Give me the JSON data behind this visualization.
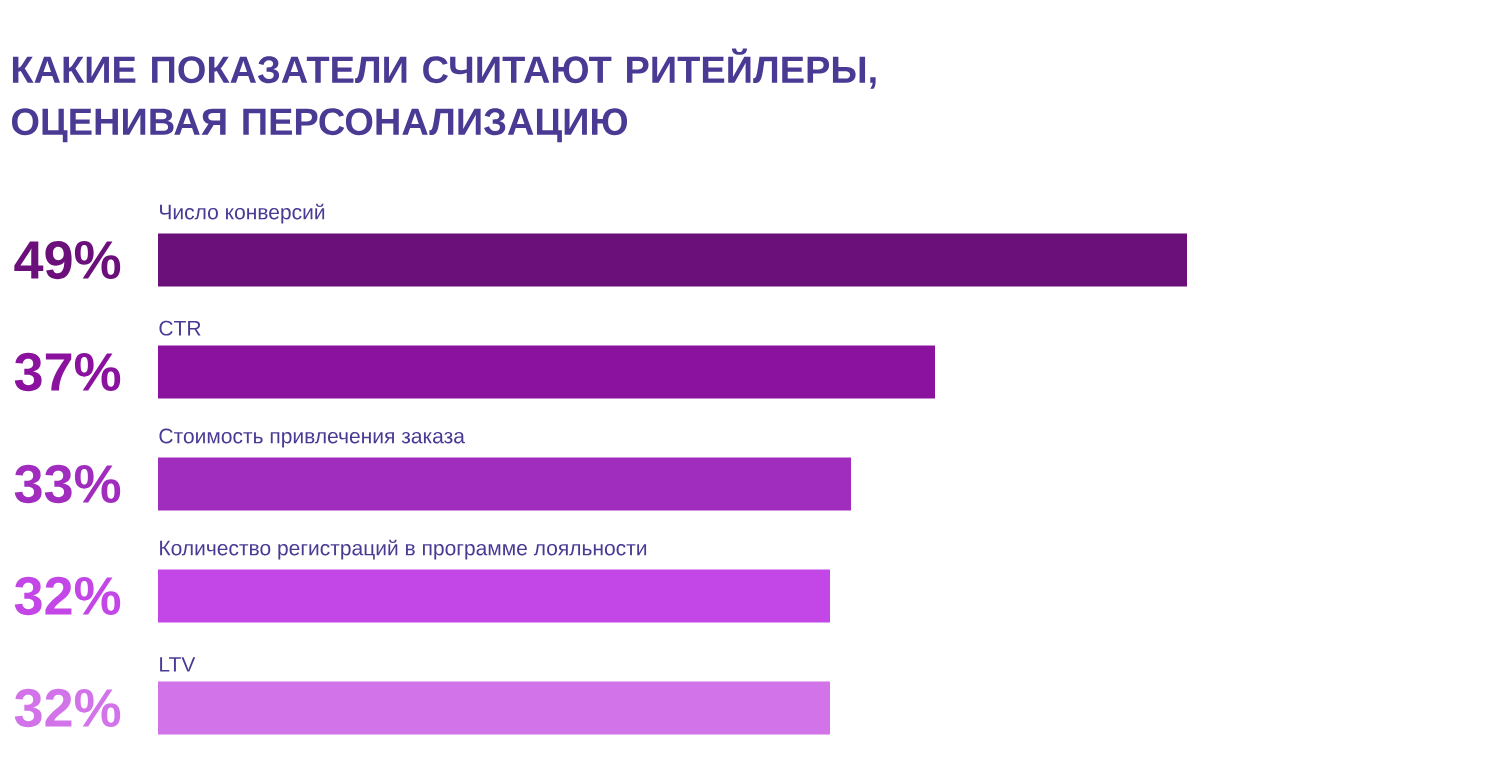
{
  "chart_data": {
    "type": "bar",
    "orientation": "horizontal",
    "title": "КАКИЕ ПОКАЗАТЕЛИ СЧИТАЮТ РИТЕЙЛЕРЫ, ОЦЕНИВАЯ ПЕРСОНАЛИЗАЦИЮ",
    "categories": [
      "Число конверсий",
      "CTR",
      "Стоимость привлечения заказа",
      "Количество регистраций в программе лояльности",
      "LTV"
    ],
    "values": [
      49,
      37,
      33,
      32,
      32
    ],
    "colors": [
      "#6b0f7a",
      "#8a129e",
      "#a12dbf",
      "#c347e6",
      "#d373ea"
    ],
    "value_labels": [
      "49%",
      "37%",
      "33%",
      "32%",
      "32%"
    ]
  }
}
